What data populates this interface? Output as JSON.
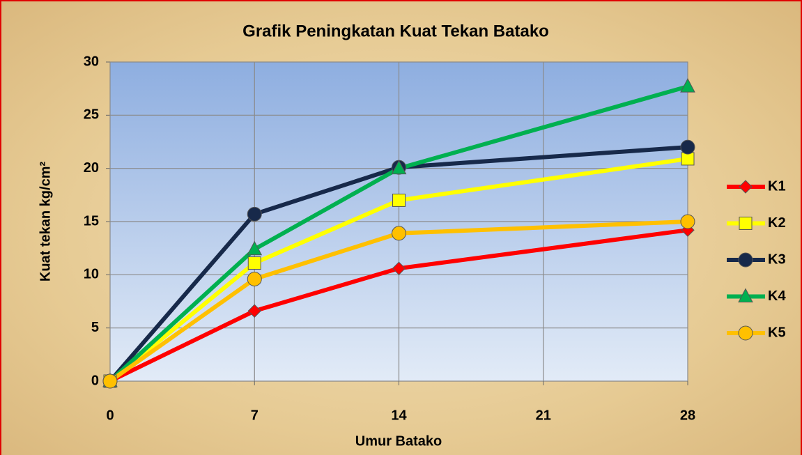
{
  "chart_data": {
    "type": "line",
    "title": "Grafik Peningkatan Kuat Tekan Batako",
    "xlabel": "Umur Batako",
    "ylabel": "Kuat tekan kg/cm²",
    "x": [
      0,
      7,
      14,
      28
    ],
    "xlim": [
      0,
      28
    ],
    "xticks": [
      0,
      7,
      14,
      21,
      28
    ],
    "ylim": [
      0,
      30
    ],
    "yticks": [
      0,
      5,
      10,
      15,
      20,
      25,
      30
    ],
    "grid": true,
    "legend": "right",
    "series": [
      {
        "name": "K1",
        "color": "#ff0000",
        "marker": "diamond",
        "values": [
          0,
          6.6,
          10.6,
          14.2
        ]
      },
      {
        "name": "K2",
        "color": "#ffff00",
        "marker": "square",
        "values": [
          0,
          11.1,
          17.0,
          20.9
        ]
      },
      {
        "name": "K3",
        "color": "#17294a",
        "marker": "circle",
        "values": [
          0,
          15.7,
          20.1,
          22.0
        ]
      },
      {
        "name": "K4",
        "color": "#00b050",
        "marker": "triangle",
        "values": [
          0,
          12.4,
          20.0,
          27.7
        ]
      },
      {
        "name": "K5",
        "color": "#ffc000",
        "marker": "circle",
        "values": [
          0,
          9.6,
          13.9,
          15.0
        ]
      }
    ]
  }
}
